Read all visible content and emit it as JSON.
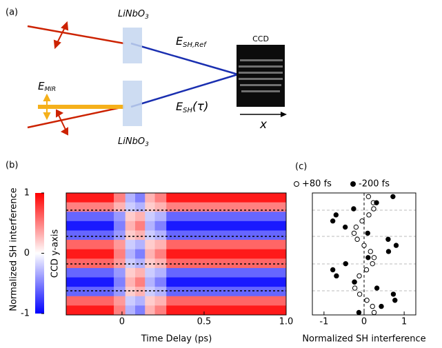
{
  "panel_labels": {
    "a": "(a)",
    "b": "(b)",
    "c": "(c)"
  },
  "diagram": {
    "crystal_top": {
      "base": "LiNbO",
      "sub": "3"
    },
    "crystal_bottom": {
      "base": "LiNbO",
      "sub": "3"
    },
    "e_ref": {
      "base": "E",
      "sub": "SH,Ref"
    },
    "e_tau": {
      "base": "E",
      "sub": "SH",
      "after": "(τ)"
    },
    "e_mir": {
      "base": "E",
      "sub": "MIR"
    },
    "ccd": "CCD",
    "ccd_axis": "x"
  },
  "chart_data": [
    {
      "type": "heatmap",
      "xlabel": "Time Delay (ps)",
      "ylabel": "CCD y-axis",
      "xlim": [
        -0.34,
        1.0
      ],
      "xticks": [
        0,
        0.5,
        {
          "value": 1,
          "label": "1.0"
        }
      ],
      "x_edges": [
        -0.34,
        -0.05,
        0.02,
        0.08,
        0.14,
        0.2,
        0.27,
        1.0
      ],
      "z": [
        [
          0.9,
          0.5,
          -0.3,
          -0.5,
          0.3,
          0.5,
          0.9
        ],
        [
          0.5,
          0.3,
          -0.2,
          -0.3,
          0.2,
          0.3,
          0.5
        ],
        [
          -0.6,
          -0.4,
          0.2,
          0.3,
          -0.2,
          -0.3,
          -0.6
        ],
        [
          -0.9,
          -0.5,
          0.3,
          0.5,
          -0.3,
          -0.5,
          -0.9
        ],
        [
          -0.6,
          -0.4,
          0.2,
          0.3,
          -0.2,
          -0.3,
          -0.6
        ],
        [
          0.6,
          0.4,
          -0.2,
          -0.3,
          0.2,
          0.3,
          0.6
        ],
        [
          0.9,
          0.5,
          -0.3,
          -0.5,
          0.3,
          0.5,
          0.9
        ],
        [
          0.6,
          0.4,
          -0.2,
          -0.3,
          0.2,
          0.3,
          0.6
        ],
        [
          -0.6,
          -0.4,
          0.2,
          0.3,
          -0.2,
          -0.3,
          -0.6
        ],
        [
          -0.9,
          -0.5,
          0.3,
          0.5,
          -0.3,
          -0.5,
          -0.9
        ],
        [
          -0.6,
          -0.4,
          0.2,
          0.3,
          -0.2,
          -0.3,
          -0.6
        ],
        [
          0.6,
          0.4,
          -0.2,
          -0.3,
          0.2,
          0.3,
          0.6
        ],
        [
          0.9,
          0.5,
          -0.3,
          -0.5,
          0.3,
          0.5,
          0.9
        ]
      ],
      "colormap": [
        "#0000ff",
        "#ffffff",
        "#ff0000"
      ],
      "zlim": [
        -1,
        1
      ],
      "colorbar_label": "Normalized SH interference",
      "colorbar_ticks": [
        -1,
        0,
        1
      ]
    },
    {
      "type": "scatter",
      "xlabel": "Normalized SH interference",
      "xlim": [
        -1.29,
        1.29
      ],
      "ylim": [
        0,
        1
      ],
      "xticks": [
        -1,
        0,
        1
      ],
      "series": [
        {
          "name": "+80 fs",
          "color": "#000000",
          "filled": false,
          "x": [
            0.11,
            0.23,
            0.24,
            0.12,
            -0.05,
            -0.2,
            -0.25,
            -0.17,
            0,
            0.16,
            0.25,
            0.21,
            0.06,
            -0.12,
            -0.24,
            -0.23,
            -0.11,
            0.07,
            0.21,
            0.25
          ],
          "values": [
            0.97,
            0.92,
            0.87,
            0.82,
            0.77,
            0.72,
            0.67,
            0.62,
            0.57,
            0.52,
            0.47,
            0.42,
            0.37,
            0.32,
            0.27,
            0.22,
            0.17,
            0.12,
            0.07,
            0.02
          ]
        },
        {
          "name": "-200 fs",
          "color": "#000000",
          "filled": true,
          "x": [
            0.72,
            0.31,
            -0.26,
            -0.7,
            -0.78,
            -0.47,
            0.09,
            0.6,
            0.8,
            0.61,
            0.1,
            -0.46,
            -0.78,
            -0.69,
            -0.24,
            0.32,
            0.73,
            0.77,
            0.43,
            -0.13
          ],
          "values": [
            0.97,
            0.92,
            0.87,
            0.82,
            0.77,
            0.72,
            0.67,
            0.62,
            0.57,
            0.52,
            0.47,
            0.42,
            0.37,
            0.32,
            0.27,
            0.22,
            0.17,
            0.12,
            0.07,
            0.02
          ]
        }
      ]
    }
  ]
}
